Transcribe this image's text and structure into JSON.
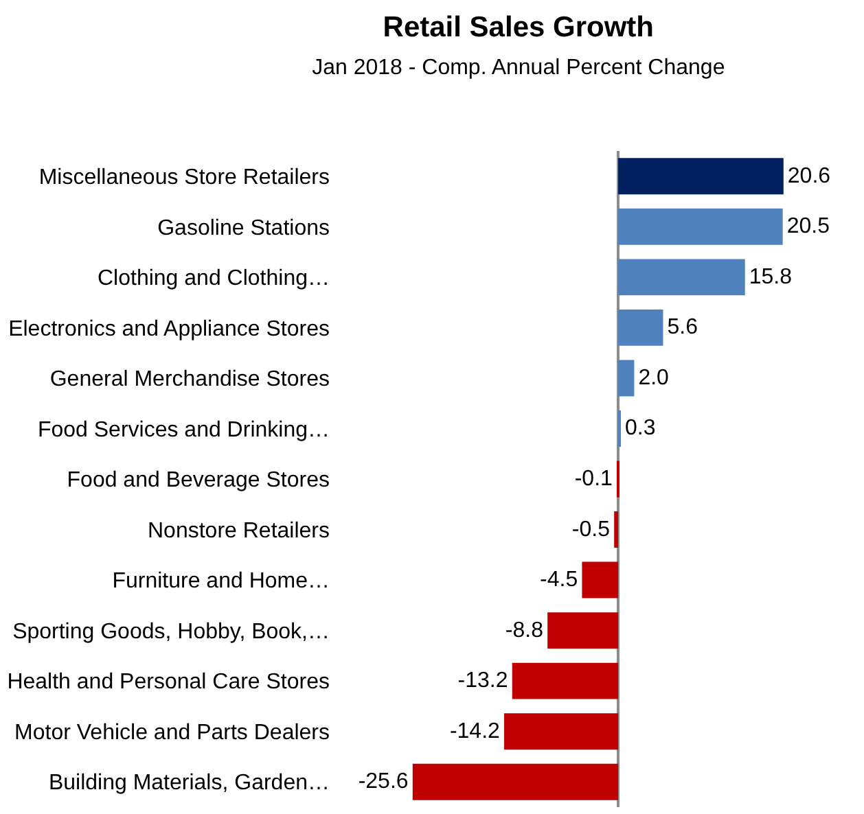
{
  "chart_data": {
    "type": "bar",
    "orientation": "horizontal",
    "title": "Retail Sales Growth",
    "subtitle": "Jan 2018 - Comp. Annual Percent Change",
    "categories": [
      "Miscellaneous Store Retailers",
      "Gasoline Stations",
      "Clothing and Clothing…",
      "Electronics and Appliance Stores",
      "General Merchandise Stores",
      "Food Services and Drinking…",
      "Food and Beverage Stores",
      "Nonstore Retailers",
      "Furniture and Home…",
      "Sporting Goods, Hobby, Book,…",
      "Health and Personal Care Stores",
      "Motor Vehicle and Parts Dealers",
      "Building Materials, Garden…"
    ],
    "values": [
      20.6,
      20.5,
      15.8,
      5.6,
      2.0,
      0.3,
      -0.1,
      -0.5,
      -4.5,
      -8.8,
      -13.2,
      -14.2,
      -25.6
    ],
    "colors": [
      "#002060",
      "#4f81bd",
      "#4f81bd",
      "#4f81bd",
      "#4f81bd",
      "#4f81bd",
      "#c00000",
      "#c00000",
      "#c00000",
      "#c00000",
      "#c00000",
      "#c00000",
      "#c00000"
    ],
    "value_labels": [
      "20.6",
      "20.5",
      "15.8",
      "5.6",
      "2.0",
      "0.3",
      "-0.1",
      "-0.5",
      "-4.5",
      "-8.8",
      "-13.2",
      "-14.2",
      "-25.6"
    ],
    "tick_labels": "y"
  }
}
